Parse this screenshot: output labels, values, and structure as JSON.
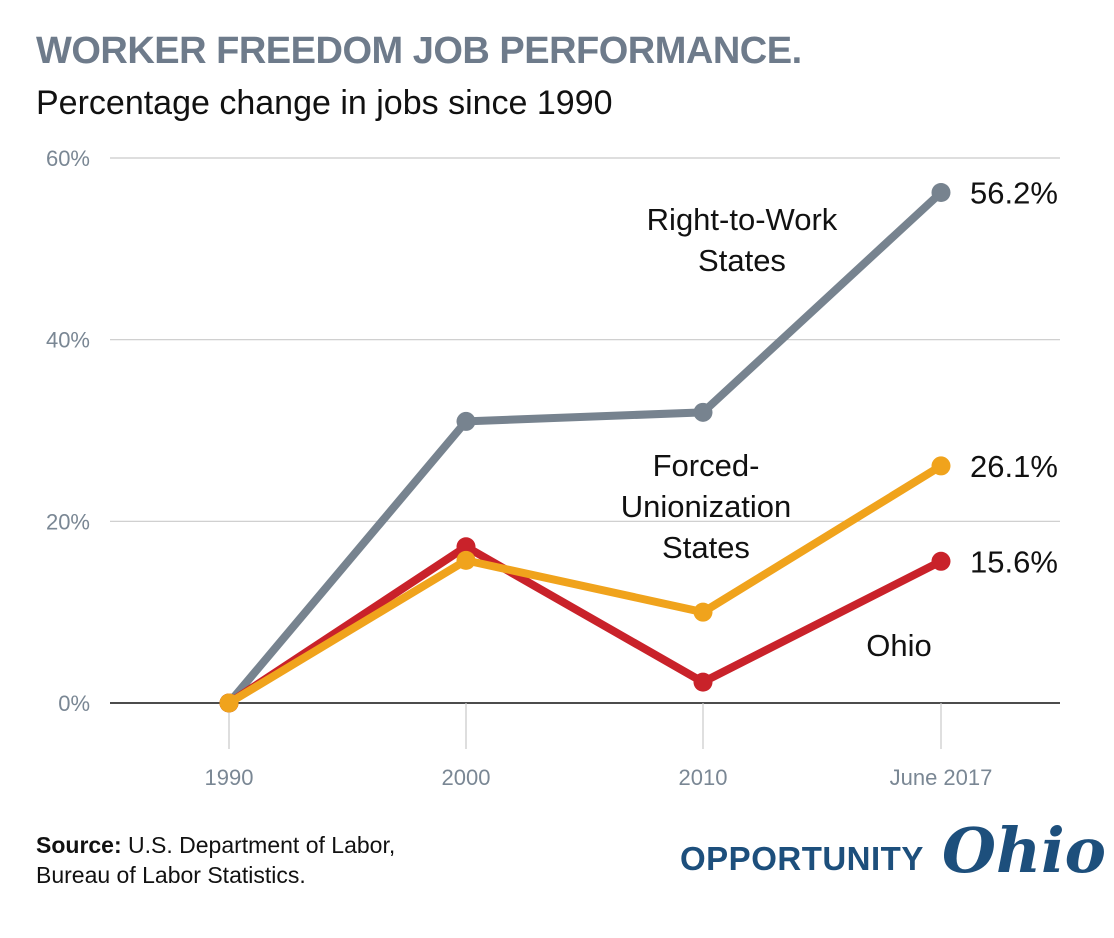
{
  "header": {
    "title": "WORKER FREEDOM JOB PERFORMANCE.",
    "subtitle": "Percentage change in jobs since 1990"
  },
  "chart_data": {
    "type": "line",
    "categories": [
      "1990",
      "2000",
      "2010",
      "June 2017"
    ],
    "ylim": [
      0,
      60
    ],
    "yticks": [
      0,
      20,
      40,
      60
    ],
    "ytick_labels": [
      "0%",
      "20%",
      "40%",
      "60%"
    ],
    "grid": true,
    "series": [
      {
        "name": "Right-to-Work States",
        "label_lines": [
          "Right-to-Work",
          "States"
        ],
        "values": [
          0,
          31,
          32,
          56.2
        ],
        "color": "#77838f",
        "end_label": "56.2%"
      },
      {
        "name": "Forced-Unionization States",
        "label_lines": [
          "Forced-",
          "Unionization",
          "States"
        ],
        "values": [
          0,
          15.7,
          10,
          26.1
        ],
        "color": "#f0a31c",
        "end_label": "26.1%"
      },
      {
        "name": "Ohio",
        "label_lines": [
          "Ohio"
        ],
        "values": [
          0,
          17.2,
          2.3,
          15.6
        ],
        "color": "#c9222a",
        "end_label": "15.6%"
      }
    ]
  },
  "footer": {
    "source_label": "Source:",
    "source_line1": "U.S. Department of Labor,",
    "source_line2": "Bureau of Labor Statistics."
  },
  "logo": {
    "word": "OPPORTUNITY",
    "script": "Ohio",
    "color": "#1d4f7c"
  }
}
